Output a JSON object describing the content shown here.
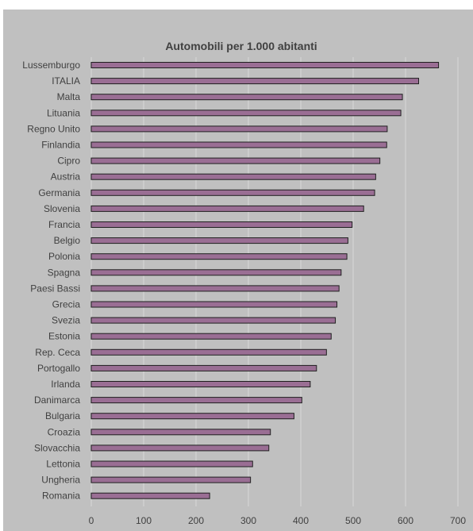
{
  "chart_data": {
    "type": "bar",
    "orientation": "horizontal",
    "title": "Automobili per 1.000 abitanti",
    "xlabel": "",
    "ylabel": "",
    "xlim": [
      0,
      700
    ],
    "xticks": [
      "0",
      "100",
      "200",
      "300",
      "400",
      "500",
      "600",
      "700"
    ],
    "grid": true,
    "legend": "none",
    "categories": [
      "Lussemburgo",
      "ITALIA",
      "Malta",
      "Lituania",
      "Regno Unito",
      "Finlandia",
      "Cipro",
      "Austria",
      "Germania",
      "Slovenia",
      "Francia",
      "Belgio",
      "Polonia",
      "Spagna",
      "Paesi Bassi",
      "Grecia",
      "Svezia",
      "Estonia",
      "Rep. Ceca",
      "Portogallo",
      "Irlanda",
      "Danimarca",
      "Bulgaria",
      "Croazia",
      "Slovacchia",
      "Lettonia",
      "Ungheria",
      "Romania"
    ],
    "values": [
      663,
      625,
      594,
      591,
      565,
      564,
      551,
      543,
      541,
      520,
      498,
      490,
      488,
      477,
      473,
      469,
      466,
      458,
      449,
      430,
      418,
      402,
      387,
      342,
      339,
      308,
      304,
      226
    ],
    "colors": {
      "bar_fill": "#9a6e94",
      "bar_stroke": "#1f1f1f",
      "background": "#c0c0c0",
      "grid": "#d9d9d9",
      "text": "#404040"
    }
  }
}
